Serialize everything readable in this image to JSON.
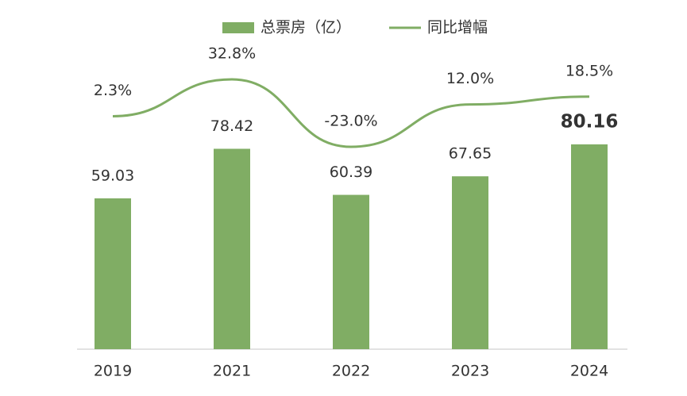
{
  "chart_data": {
    "type": "bar-line",
    "categories": [
      "2019",
      "2021",
      "2022",
      "2023",
      "2024"
    ],
    "series": [
      {
        "name": "总票房（亿）",
        "type": "bar",
        "color": "#80ad64",
        "values": [
          59.03,
          78.42,
          60.39,
          67.65,
          80.16
        ]
      },
      {
        "name": "同比增幅",
        "type": "line",
        "axis": "y2",
        "color": "#80ad64",
        "values": [
          2.3,
          32.8,
          -23.0,
          12.0,
          18.5
        ],
        "value_labels": [
          "2.3%",
          "32.8%",
          "-23.0%",
          "12.0%",
          "18.5%"
        ]
      }
    ],
    "legend": "top"
  }
}
